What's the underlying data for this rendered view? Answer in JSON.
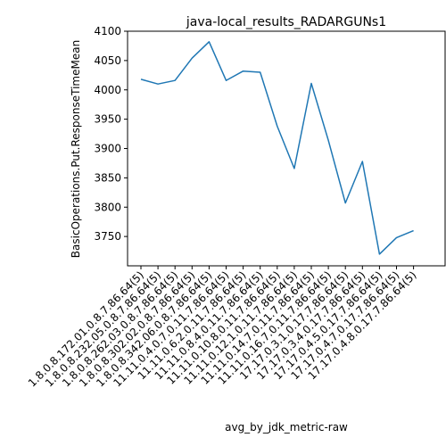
{
  "chart_data": {
    "type": "line",
    "title": "java-local_results_RADARGUNs1",
    "xlabel": "avg_by_jdk_metric-raw",
    "ylabel": "BasicOperations.Put.ResponseTimeMean",
    "categories": [
      "1.8.0.8.172.01.0.8.7.86.64(5)",
      "1.8.0.8.232.05.0.8.7.86.64(5)",
      "1.8.0.8.262.03.0.8.7.86.64(5)",
      "1.8.0.8.302.02.0.8.7.86.64(5)",
      "1.8.0.8.342.06.0.8.7.86.64(5)",
      "11.11.0.4.0.7.0.11.7.86.64(5)",
      "11.11.0.6.2.0.11.7.86.64(5)",
      "11.11.0.8.4.0.11.7.86.64(5)",
      "11.11.0.10.8.0.11.7.86.64(5)",
      "11.11.0.12.1.0.11.7.86.64(5)",
      "11.11.0.14.7.0.11.7.86.64(5)",
      "11.11.0.16.7.0.11.7.86.64(5)",
      "17.17.0.3.1.0.17.7.86.64(5)",
      "17.17.0.3.4.0.17.7.86.64(5)",
      "17.17.0.4.5.0.17.7.86.64(5)",
      "17.17.0.4.7.0.17.7.86.64(5)",
      "17.17.0.4.8.0.17.7.86.64(5)"
    ],
    "series": [
      {
        "values": [
          4018,
          4010,
          4016,
          4054,
          4082,
          4016,
          4032,
          4030,
          3938,
          3866,
          4011,
          3914,
          3807,
          3878,
          3720,
          3748,
          3760
        ]
      }
    ],
    "yticks": [
      3750,
      3800,
      3850,
      3900,
      3950,
      4000,
      4050,
      4100
    ],
    "ylim": [
      3700,
      4100
    ],
    "grid": false,
    "colors": {
      "line": "#1f77b4"
    }
  }
}
